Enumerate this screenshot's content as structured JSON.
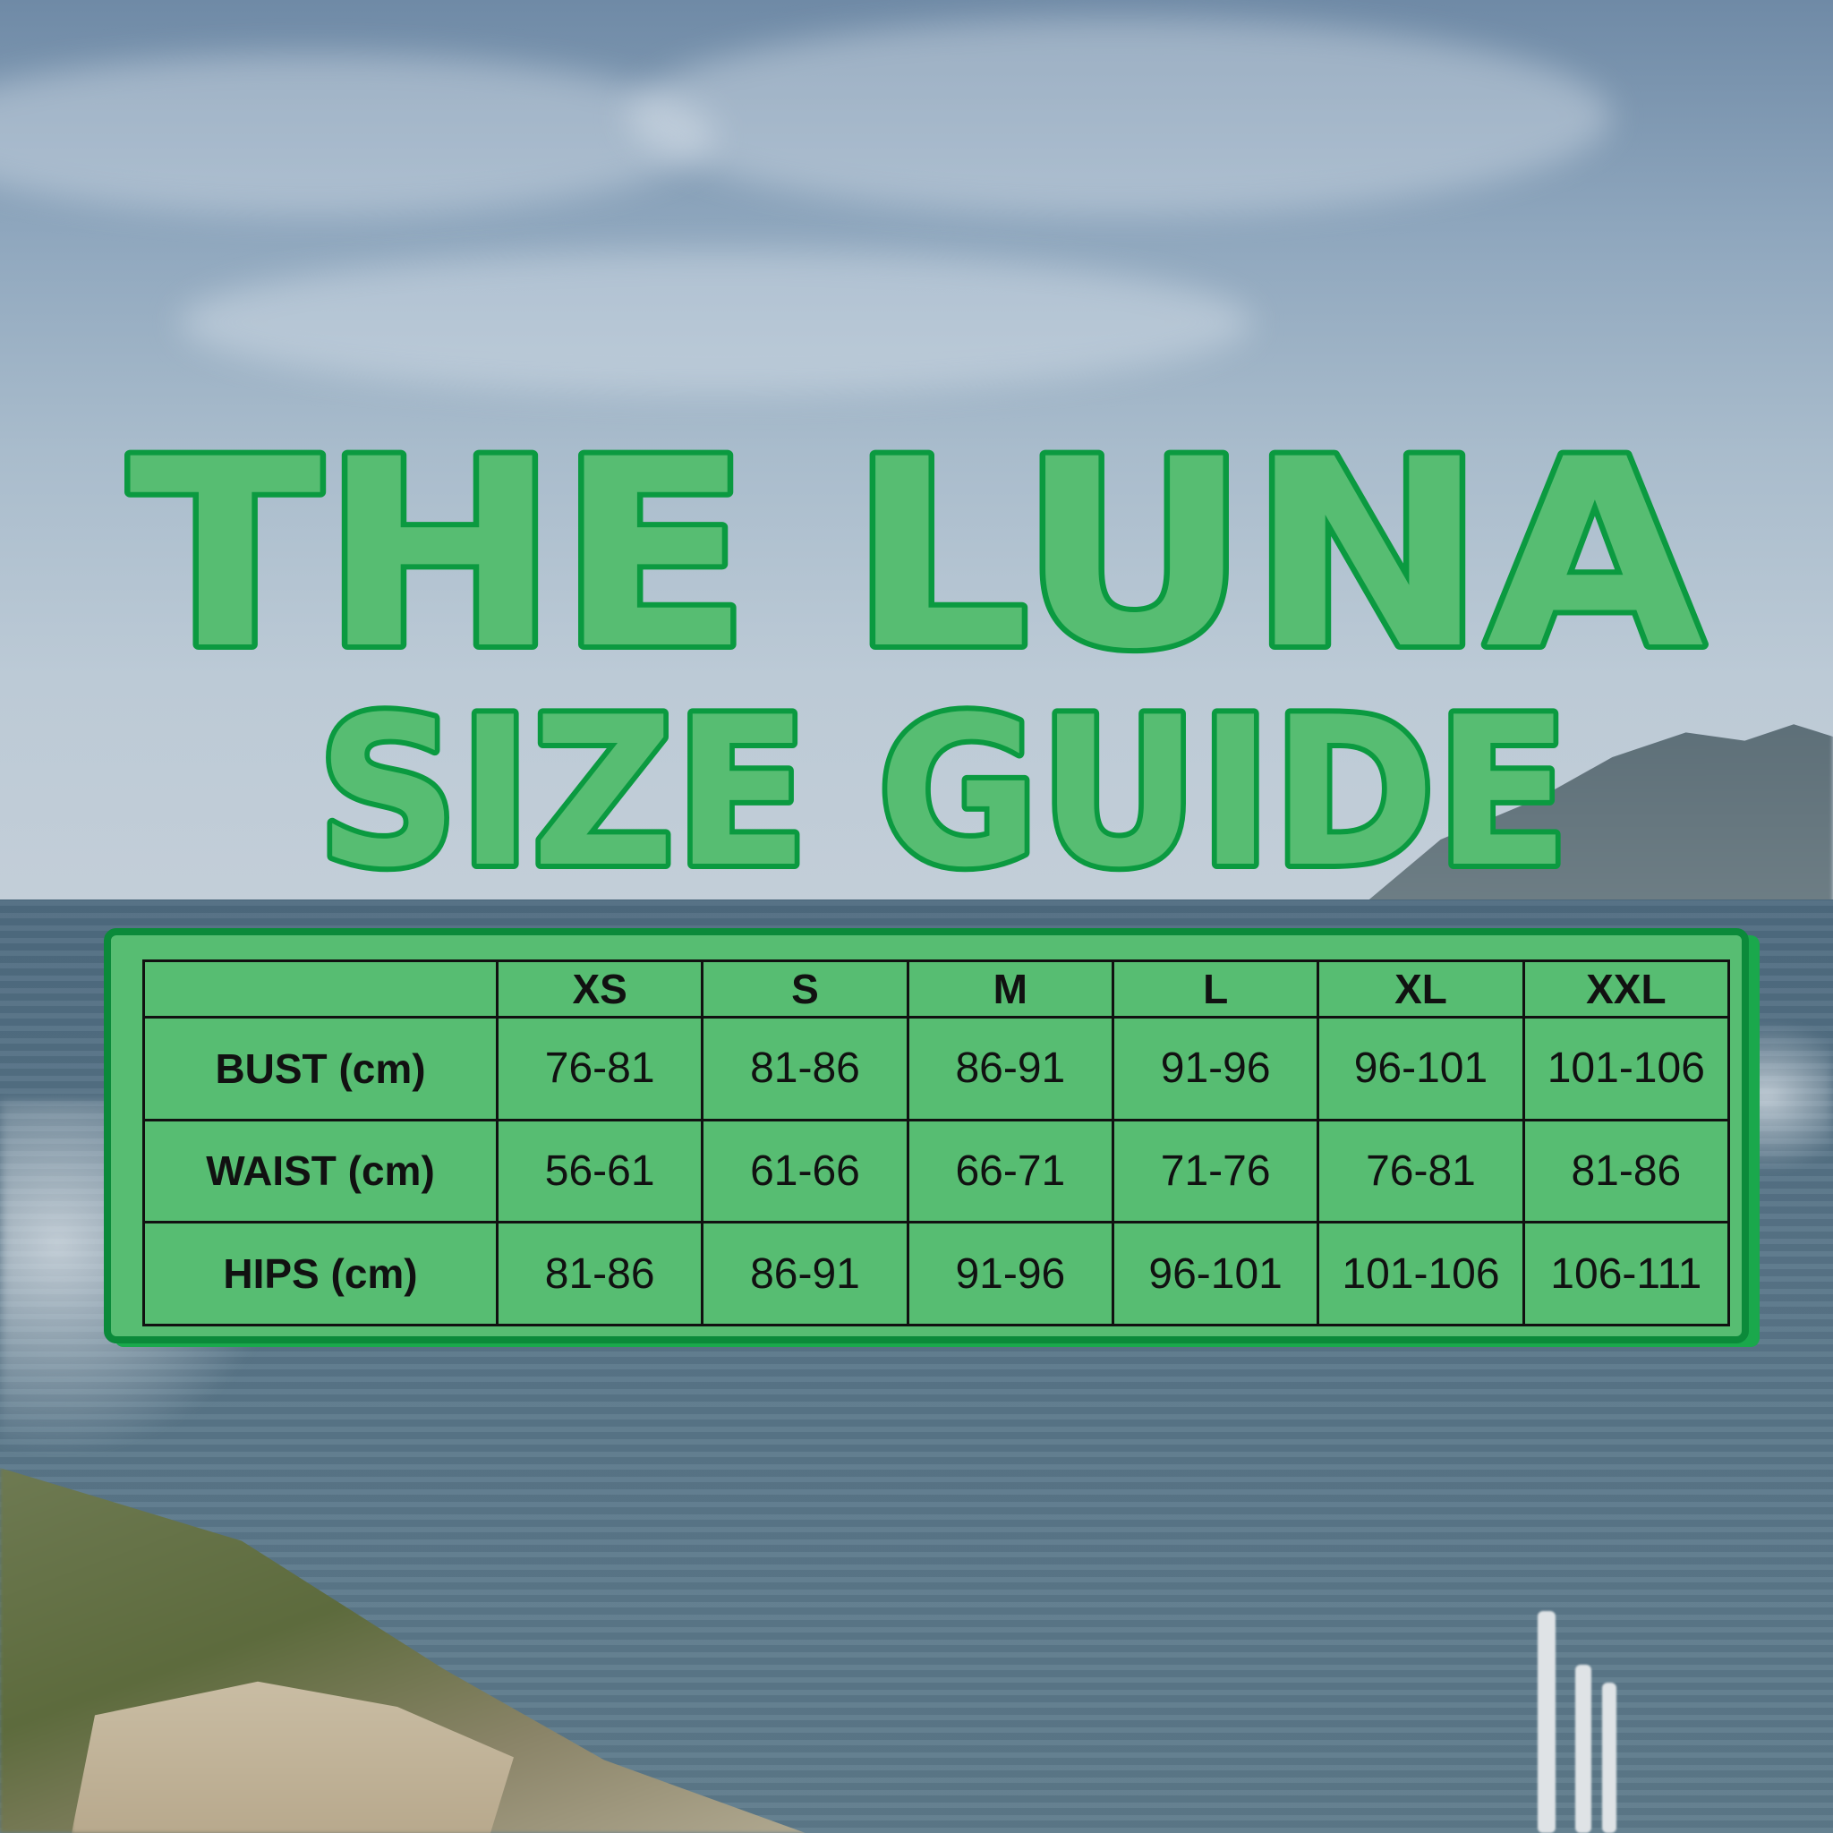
{
  "title": {
    "line1": "THE LUNA",
    "line2": "SIZE GUIDE"
  },
  "colors": {
    "title_fill": "#57bd72",
    "title_outline": "#0b9a40",
    "card_fill": "#57bd72",
    "card_border": "#0b8a3a",
    "text": "#111111"
  },
  "size_table": {
    "corner": "",
    "columns": [
      "XS",
      "S",
      "M",
      "L",
      "XL",
      "XXL"
    ],
    "rows": [
      {
        "label": "BUST (cm)",
        "values": [
          "76-81",
          "81-86",
          "86-91",
          "91-96",
          "96-101",
          "101-106"
        ]
      },
      {
        "label": "WAIST (cm)",
        "values": [
          "56-61",
          "61-66",
          "66-71",
          "71-76",
          "76-81",
          "81-86"
        ]
      },
      {
        "label": "HIPS (cm)",
        "values": [
          "81-86",
          "86-91",
          "91-96",
          "96-101",
          "101-106",
          "106-111"
        ]
      }
    ]
  }
}
